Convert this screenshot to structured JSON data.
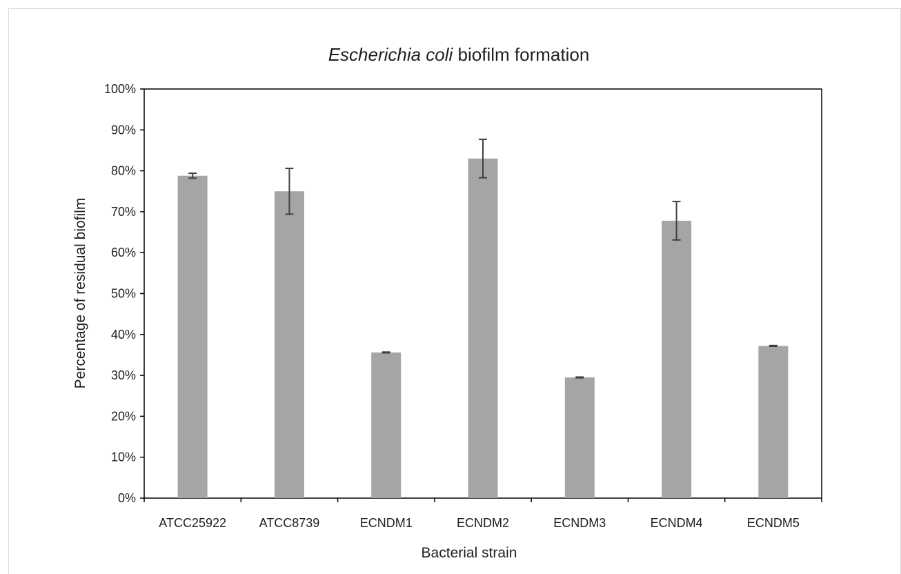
{
  "chart_data": {
    "type": "bar",
    "title_italic": "Escherichia coli",
    "title_rest": " biofilm formation",
    "xlabel": "Bacterial strain",
    "ylabel": "Percentage of residual biofilm",
    "categories": [
      "ATCC25922",
      "ATCC8739",
      "ECNDM1",
      "ECNDM2",
      "ECNDM3",
      "ECNDM4",
      "ECNDM5"
    ],
    "values": [
      78.8,
      75.0,
      35.6,
      83.0,
      29.5,
      67.8,
      37.2
    ],
    "errors": [
      0.6,
      5.6,
      0.1,
      4.7,
      0.1,
      4.7,
      0.1
    ],
    "ylim": [
      0,
      100
    ],
    "yticks": [
      0,
      10,
      20,
      30,
      40,
      50,
      60,
      70,
      80,
      90,
      100
    ],
    "ytick_labels": [
      "0%",
      "10%",
      "20%",
      "30%",
      "40%",
      "50%",
      "60%",
      "70%",
      "80%",
      "90%",
      "100%"
    ],
    "grid": false,
    "colors": {
      "bar": "#a5a5a5",
      "error_bar": "#404040",
      "axis": "#000000",
      "frame": "#d9d9d9"
    }
  }
}
